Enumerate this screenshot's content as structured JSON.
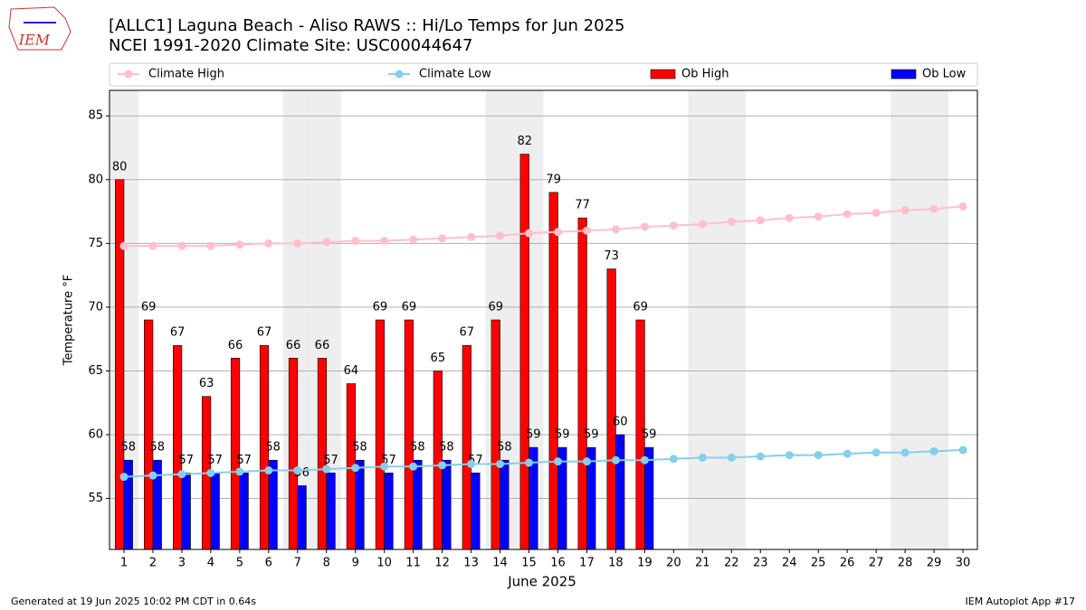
{
  "chart_data": {
    "type": "bar",
    "title": "[ALLC1] Laguna Beach - Aliso RAWS :: Hi/Lo Temps for Jun 2025",
    "subtitle": "NCEI 1991-2020 Climate Site: USC00044647",
    "xlabel": "June 2025",
    "ylabel": "Temperature °F",
    "logo": "IEM",
    "footer_left": "Generated at 19 Jun 2025 10:02 PM CDT in 0.64s",
    "footer_right": "IEM Autoplot App #17",
    "x": [
      1,
      2,
      3,
      4,
      5,
      6,
      7,
      8,
      9,
      10,
      11,
      12,
      13,
      14,
      15,
      16,
      17,
      18,
      19,
      20,
      21,
      22,
      23,
      24,
      25,
      26,
      27,
      28,
      29,
      30
    ],
    "xlim": [
      0.5,
      30.5
    ],
    "xticks": [
      1,
      2,
      3,
      4,
      5,
      6,
      7,
      8,
      9,
      10,
      11,
      12,
      13,
      14,
      15,
      16,
      17,
      18,
      19,
      20,
      21,
      22,
      23,
      24,
      25,
      26,
      27,
      28,
      29,
      30
    ],
    "ylim": [
      51,
      87
    ],
    "yticks": [
      55,
      60,
      65,
      70,
      75,
      80,
      85
    ],
    "grid": true,
    "shaded_days": [
      1,
      7,
      8,
      14,
      15,
      21,
      22,
      28,
      29
    ],
    "shade_color": "#eeeeee",
    "legend": "top",
    "series": [
      {
        "name": "Climate High",
        "type": "line",
        "color": "#ffc0cb",
        "values": [
          74.8,
          74.8,
          74.8,
          74.8,
          74.9,
          75.0,
          75.0,
          75.1,
          75.2,
          75.2,
          75.3,
          75.4,
          75.5,
          75.6,
          75.8,
          75.9,
          76.0,
          76.1,
          76.3,
          76.4,
          76.5,
          76.7,
          76.8,
          77.0,
          77.1,
          77.3,
          77.4,
          77.6,
          77.7,
          77.9
        ]
      },
      {
        "name": "Climate Low",
        "type": "line",
        "color": "#87ceeb",
        "values": [
          56.7,
          56.8,
          56.9,
          57.0,
          57.1,
          57.2,
          57.2,
          57.3,
          57.4,
          57.5,
          57.5,
          57.6,
          57.7,
          57.7,
          57.8,
          57.9,
          57.9,
          58.0,
          58.0,
          58.1,
          58.2,
          58.2,
          58.3,
          58.4,
          58.4,
          58.5,
          58.6,
          58.6,
          58.7,
          58.8
        ]
      },
      {
        "name": "Ob High",
        "type": "bar",
        "color": "#ff0000",
        "values": [
          80,
          69,
          67,
          63,
          66,
          67,
          66,
          66,
          64,
          69,
          69,
          65,
          67,
          69,
          82,
          79,
          77,
          73,
          69,
          null,
          null,
          null,
          null,
          null,
          null,
          null,
          null,
          null,
          null,
          null
        ]
      },
      {
        "name": "Ob Low",
        "type": "bar",
        "color": "#0000ff",
        "values": [
          58,
          58,
          57,
          57,
          57,
          58,
          56,
          57,
          58,
          57,
          58,
          58,
          57,
          58,
          59,
          59,
          59,
          60,
          59,
          null,
          null,
          null,
          null,
          null,
          null,
          null,
          null,
          null,
          null,
          null
        ]
      }
    ]
  }
}
